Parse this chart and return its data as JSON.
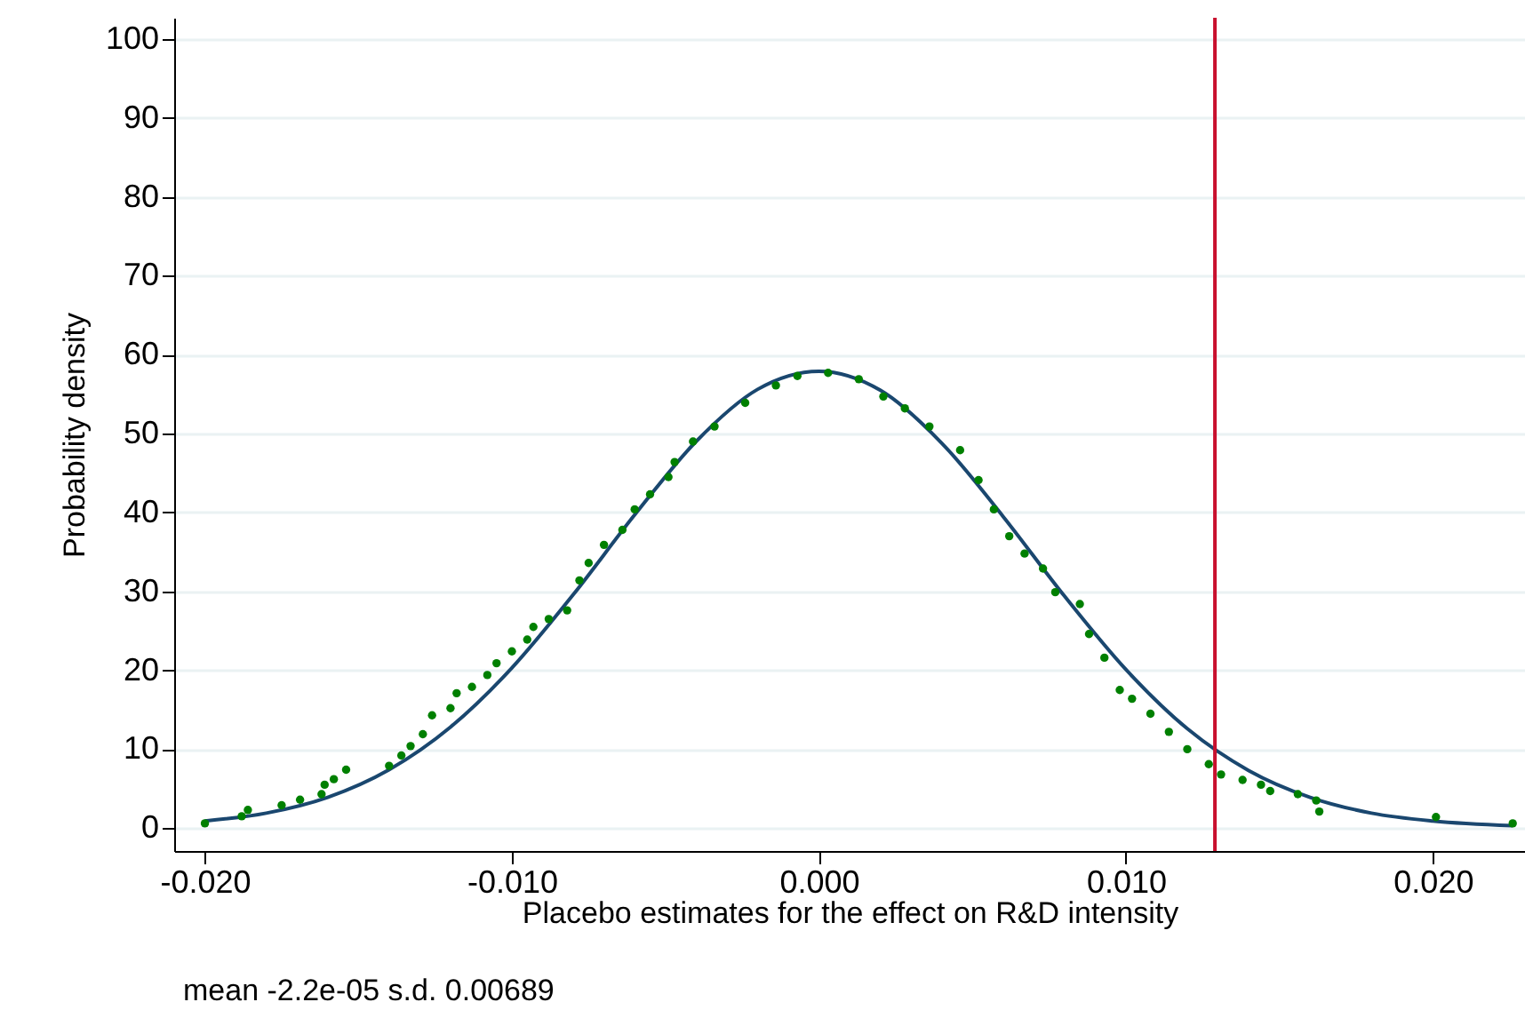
{
  "chart_data": {
    "type": "scatter",
    "xlabel": "Placebo estimates for the effect on R&D intensity",
    "ylabel": "Probability density",
    "annotations": [
      "mean -2.2e-05 s.d. 0.00689"
    ],
    "xlim": [
      -0.021,
      0.023
    ],
    "ylim": [
      -2.9,
      102.7
    ],
    "xticks": [
      {
        "value": -0.02,
        "label": "-0.020"
      },
      {
        "value": -0.01,
        "label": "-0.010"
      },
      {
        "value": 0,
        "label": "0.000"
      },
      {
        "value": 0.01,
        "label": "0.010"
      },
      {
        "value": 0.02,
        "label": "0.020"
      }
    ],
    "yticks": [
      0,
      10,
      20,
      30,
      40,
      50,
      60,
      70,
      80,
      90,
      100
    ],
    "grid": "y",
    "marker": "circle",
    "line_style": "solid",
    "ref_lines": [
      {
        "axis": "x",
        "value": 0.0129,
        "color": "#c8102e"
      }
    ],
    "series": [
      {
        "type": "line",
        "marker": "none",
        "color": "#1a476f",
        "x": [
          -0.02,
          -0.018,
          -0.016,
          -0.014,
          -0.012,
          -0.01,
          -0.008,
          -0.006,
          -0.004,
          -0.002,
          0,
          0.002,
          0.004,
          0.006,
          0.008,
          0.01,
          0.012,
          0.014,
          0.016,
          0.018,
          0.02,
          0.0226
        ],
        "values": [
          0.9,
          1.9,
          3.9,
          7.4,
          12.8,
          20.3,
          29.6,
          39.7,
          49.0,
          55.6,
          57.9,
          55.5,
          48.8,
          39.5,
          29.4,
          20.1,
          12.6,
          7.3,
          3.9,
          1.9,
          0.9,
          0.3
        ]
      },
      {
        "color": "#008000",
        "x": [
          -0.02,
          -0.0188,
          -0.0186,
          -0.0175,
          -0.0169,
          -0.0162,
          -0.0161,
          -0.0158,
          -0.0154,
          -0.014,
          -0.0136,
          -0.0133,
          -0.0129,
          -0.0126,
          -0.012,
          -0.0118,
          -0.0113,
          -0.0108,
          -0.0105,
          -0.01,
          -0.0095,
          -0.0093,
          -0.0088,
          -0.0082,
          -0.0078,
          -0.0075,
          -0.007,
          -0.0064,
          -0.006,
          -0.0055,
          -0.0049,
          -0.0047,
          -0.0041,
          -0.0034,
          -0.0024,
          -0.0014,
          -0.0007,
          0.0003,
          0.0013,
          0.0021,
          0.0028,
          0.0036,
          0.0046,
          0.0052,
          0.0057,
          0.0062,
          0.0067,
          0.0073,
          0.0077,
          0.0085,
          0.0088,
          0.0093,
          0.0098,
          0.0102,
          0.0108,
          0.0114,
          0.012,
          0.0127,
          0.0131,
          0.0138,
          0.0144,
          0.0147,
          0.0156,
          0.0162,
          0.0163,
          0.0201,
          0.0226
        ],
        "values": [
          0.6,
          1.5,
          2.3,
          2.9,
          3.6,
          4.3,
          5.5,
          6.2,
          7.4,
          7.9,
          9.2,
          10.4,
          11.9,
          14.3,
          15.2,
          17.1,
          17.9,
          19.4,
          20.9,
          22.4,
          23.9,
          25.5,
          26.5,
          27.6,
          31.4,
          33.6,
          35.9,
          37.8,
          40.4,
          42.3,
          44.5,
          46.4,
          49.0,
          50.9,
          53.9,
          56.1,
          57.3,
          57.7,
          56.9,
          54.7,
          53.2,
          50.9,
          47.9,
          44.1,
          40.4,
          37.0,
          34.8,
          32.9,
          29.9,
          28.4,
          24.6,
          21.6,
          17.5,
          16.4,
          14.5,
          12.2,
          10.0,
          8.1,
          6.8,
          6.1,
          5.5,
          4.7,
          4.3,
          3.5,
          2.1,
          1.4,
          0.6
        ]
      }
    ]
  }
}
